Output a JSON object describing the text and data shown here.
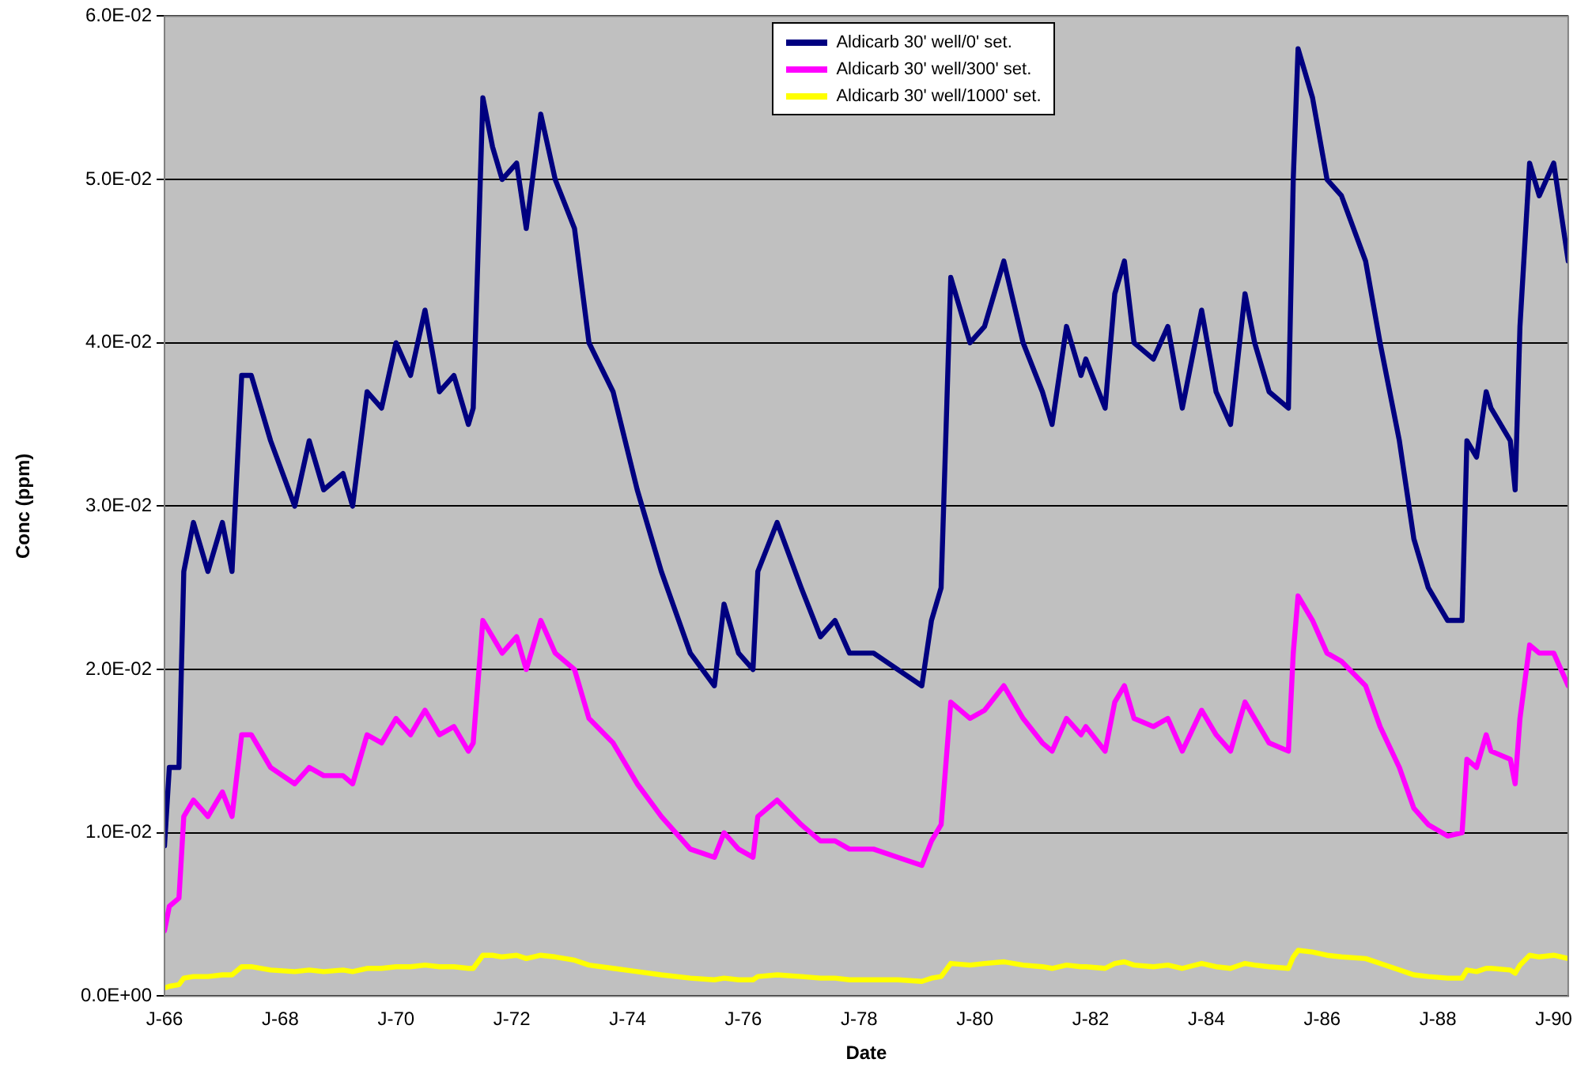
{
  "chart_data": {
    "type": "line",
    "xlabel": "Date",
    "ylabel": "Conc (ppm)",
    "x": [
      "1966-01",
      "1966-02",
      "1966-04",
      "1966-05",
      "1966-07",
      "1966-10",
      "1967-01",
      "1967-03",
      "1967-05",
      "1967-07",
      "1967-11",
      "1968-04",
      "1968-07",
      "1968-10",
      "1969-02",
      "1969-04",
      "1969-07",
      "1969-10",
      "1970-01",
      "1970-04",
      "1970-07",
      "1970-10",
      "1971-01",
      "1971-04",
      "1971-05",
      "1971-07",
      "1971-09",
      "1971-11",
      "1972-02",
      "1972-04",
      "1972-07",
      "1972-10",
      "1973-02",
      "1973-05",
      "1973-10",
      "1974-03",
      "1974-08",
      "1975-02",
      "1975-07",
      "1975-09",
      "1975-12",
      "1976-03",
      "1976-04",
      "1976-08",
      "1977-01",
      "1977-05",
      "1977-08",
      "1977-11",
      "1978-04",
      "1978-09",
      "1979-02",
      "1979-04",
      "1979-06",
      "1979-08",
      "1979-12",
      "1980-03",
      "1980-07",
      "1980-11",
      "1981-03",
      "1981-05",
      "1981-08",
      "1981-11",
      "1981-12",
      "1982-04",
      "1982-06",
      "1982-08",
      "1982-10",
      "1983-02",
      "1983-05",
      "1983-08",
      "1983-12",
      "1984-03",
      "1984-06",
      "1984-09",
      "1984-11",
      "1985-02",
      "1985-06",
      "1985-07",
      "1985-08",
      "1985-11",
      "1986-02",
      "1986-05",
      "1986-10",
      "1987-01",
      "1987-05",
      "1987-08",
      "1987-11",
      "1988-03",
      "1988-06",
      "1988-07",
      "1988-09",
      "1988-11",
      "1988-12",
      "1989-04",
      "1989-05",
      "1989-06",
      "1989-08",
      "1989-10",
      "1990-01",
      "1990-04"
    ],
    "series": [
      {
        "name": "Aldicarb 30' well/0' set.",
        "color": "#000080",
        "values": [
          0.0092,
          0.014,
          0.014,
          0.026,
          0.029,
          0.026,
          0.029,
          0.026,
          0.038,
          0.038,
          0.034,
          0.03,
          0.034,
          0.031,
          0.032,
          0.03,
          0.037,
          0.036,
          0.04,
          0.038,
          0.042,
          0.037,
          0.038,
          0.035,
          0.036,
          0.055,
          0.052,
          0.05,
          0.051,
          0.047,
          0.054,
          0.05,
          0.047,
          0.04,
          0.037,
          0.031,
          0.026,
          0.021,
          0.019,
          0.024,
          0.021,
          0.02,
          0.026,
          0.029,
          0.025,
          0.022,
          0.023,
          0.021,
          0.021,
          0.02,
          0.019,
          0.023,
          0.025,
          0.044,
          0.04,
          0.041,
          0.045,
          0.04,
          0.037,
          0.035,
          0.041,
          0.038,
          0.039,
          0.036,
          0.043,
          0.045,
          0.04,
          0.039,
          0.041,
          0.036,
          0.042,
          0.037,
          0.035,
          0.043,
          0.04,
          0.037,
          0.036,
          0.05,
          0.058,
          0.055,
          0.05,
          0.049,
          0.045,
          0.04,
          0.034,
          0.028,
          0.025,
          0.023,
          0.023,
          0.034,
          0.033,
          0.037,
          0.036,
          0.034,
          0.031,
          0.041,
          0.051,
          0.049,
          0.051,
          0.045
        ]
      },
      {
        "name": "Aldicarb 30' well/300' set.",
        "color": "#ff00ff",
        "values": [
          0.004,
          0.0055,
          0.006,
          0.011,
          0.012,
          0.011,
          0.0125,
          0.011,
          0.016,
          0.016,
          0.014,
          0.013,
          0.014,
          0.0135,
          0.0135,
          0.013,
          0.016,
          0.0155,
          0.017,
          0.016,
          0.0175,
          0.016,
          0.0165,
          0.015,
          0.0155,
          0.023,
          0.022,
          0.021,
          0.022,
          0.02,
          0.023,
          0.021,
          0.02,
          0.017,
          0.0155,
          0.013,
          0.011,
          0.009,
          0.0085,
          0.01,
          0.009,
          0.0085,
          0.011,
          0.012,
          0.0105,
          0.0095,
          0.0095,
          0.009,
          0.009,
          0.0085,
          0.008,
          0.0095,
          0.0105,
          0.018,
          0.017,
          0.0175,
          0.019,
          0.017,
          0.0155,
          0.015,
          0.017,
          0.016,
          0.0165,
          0.015,
          0.018,
          0.019,
          0.017,
          0.0165,
          0.017,
          0.015,
          0.0175,
          0.016,
          0.015,
          0.018,
          0.017,
          0.0155,
          0.015,
          0.021,
          0.0245,
          0.023,
          0.021,
          0.0205,
          0.019,
          0.0165,
          0.014,
          0.0115,
          0.0105,
          0.0098,
          0.01,
          0.0145,
          0.014,
          0.016,
          0.015,
          0.0145,
          0.013,
          0.017,
          0.0215,
          0.021,
          0.021,
          0.019
        ]
      },
      {
        "name": "Aldicarb 30' well/1000' set.",
        "color": "#ffff00",
        "values": [
          0.0005,
          0.0006,
          0.0007,
          0.0011,
          0.0012,
          0.0012,
          0.0013,
          0.0013,
          0.0018,
          0.0018,
          0.0016,
          0.0015,
          0.0016,
          0.0015,
          0.0016,
          0.0015,
          0.0017,
          0.0017,
          0.0018,
          0.0018,
          0.0019,
          0.0018,
          0.0018,
          0.0017,
          0.0017,
          0.0025,
          0.0025,
          0.0024,
          0.0025,
          0.0023,
          0.0025,
          0.0024,
          0.0022,
          0.0019,
          0.0017,
          0.0015,
          0.0013,
          0.0011,
          0.001,
          0.0011,
          0.001,
          0.001,
          0.0012,
          0.0013,
          0.0012,
          0.0011,
          0.0011,
          0.001,
          0.001,
          0.001,
          0.0009,
          0.0011,
          0.0012,
          0.002,
          0.0019,
          0.002,
          0.0021,
          0.0019,
          0.0018,
          0.0017,
          0.0019,
          0.0018,
          0.0018,
          0.0017,
          0.002,
          0.0021,
          0.0019,
          0.0018,
          0.0019,
          0.0017,
          0.002,
          0.0018,
          0.0017,
          0.002,
          0.0019,
          0.0018,
          0.0017,
          0.0024,
          0.0028,
          0.0027,
          0.0025,
          0.0024,
          0.0023,
          0.002,
          0.0016,
          0.0013,
          0.0012,
          0.0011,
          0.0011,
          0.0016,
          0.0015,
          0.0017,
          0.0017,
          0.0016,
          0.0014,
          0.0019,
          0.0025,
          0.0024,
          0.0025,
          0.0023
        ]
      }
    ],
    "xlim": [
      "1966-01",
      "1990-04"
    ],
    "xticks": [
      {
        "value": "1966-01",
        "label": "J-66"
      },
      {
        "value": "1968-01",
        "label": "J-68"
      },
      {
        "value": "1970-01",
        "label": "J-70"
      },
      {
        "value": "1972-01",
        "label": "J-72"
      },
      {
        "value": "1974-01",
        "label": "J-74"
      },
      {
        "value": "1976-01",
        "label": "J-76"
      },
      {
        "value": "1978-01",
        "label": "J-78"
      },
      {
        "value": "1980-01",
        "label": "J-80"
      },
      {
        "value": "1982-01",
        "label": "J-82"
      },
      {
        "value": "1984-01",
        "label": "J-84"
      },
      {
        "value": "1986-01",
        "label": "J-86"
      },
      {
        "value": "1988-01",
        "label": "J-88"
      },
      {
        "value": "1990-01",
        "label": "J-90"
      }
    ],
    "ylim": [
      0,
      0.06
    ],
    "yticks": [
      {
        "value": 0,
        "label": "0.0E+00"
      },
      {
        "value": 0.01,
        "label": "1.0E-02"
      },
      {
        "value": 0.02,
        "label": "2.0E-02"
      },
      {
        "value": 0.03,
        "label": "3.0E-02"
      },
      {
        "value": 0.04,
        "label": "4.0E-02"
      },
      {
        "value": 0.05,
        "label": "5.0E-02"
      },
      {
        "value": 0.06,
        "label": "6.0E-02"
      }
    ],
    "grid": "y",
    "legend": "top",
    "marker": "none",
    "line_style": "solid"
  }
}
